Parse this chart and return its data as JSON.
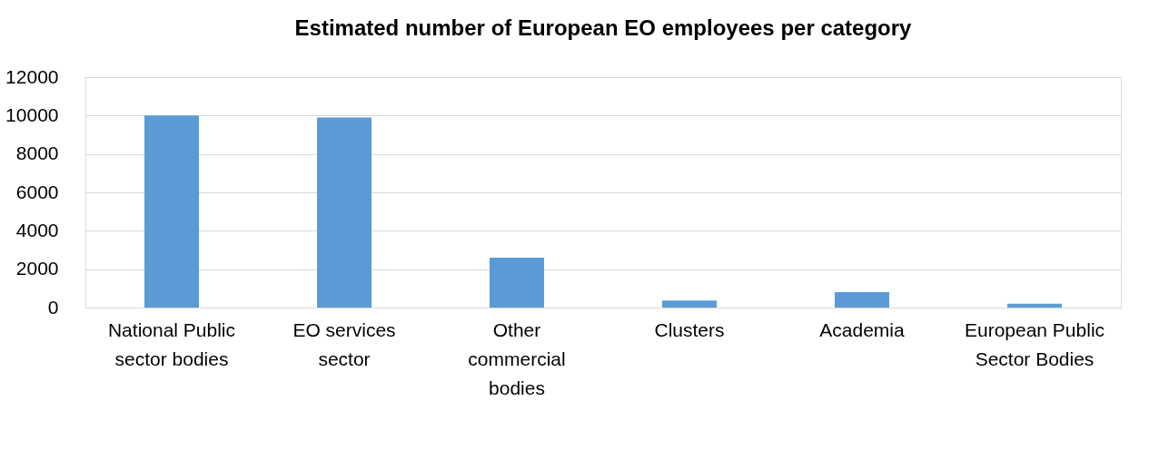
{
  "chart_data": {
    "type": "bar",
    "title": "Estimated number of European EO employees per category",
    "categories": [
      "National Public sector bodies",
      "EO services sector",
      "Other commercial bodies",
      "Clusters",
      "Academia",
      "European Public Sector Bodies"
    ],
    "values": [
      10000,
      9900,
      2600,
      370,
      800,
      200
    ],
    "color": "#5b9bd5",
    "ylim": [
      0,
      12000
    ],
    "yticks": [
      0,
      2000,
      4000,
      6000,
      8000,
      10000,
      12000
    ],
    "grid": "y"
  }
}
